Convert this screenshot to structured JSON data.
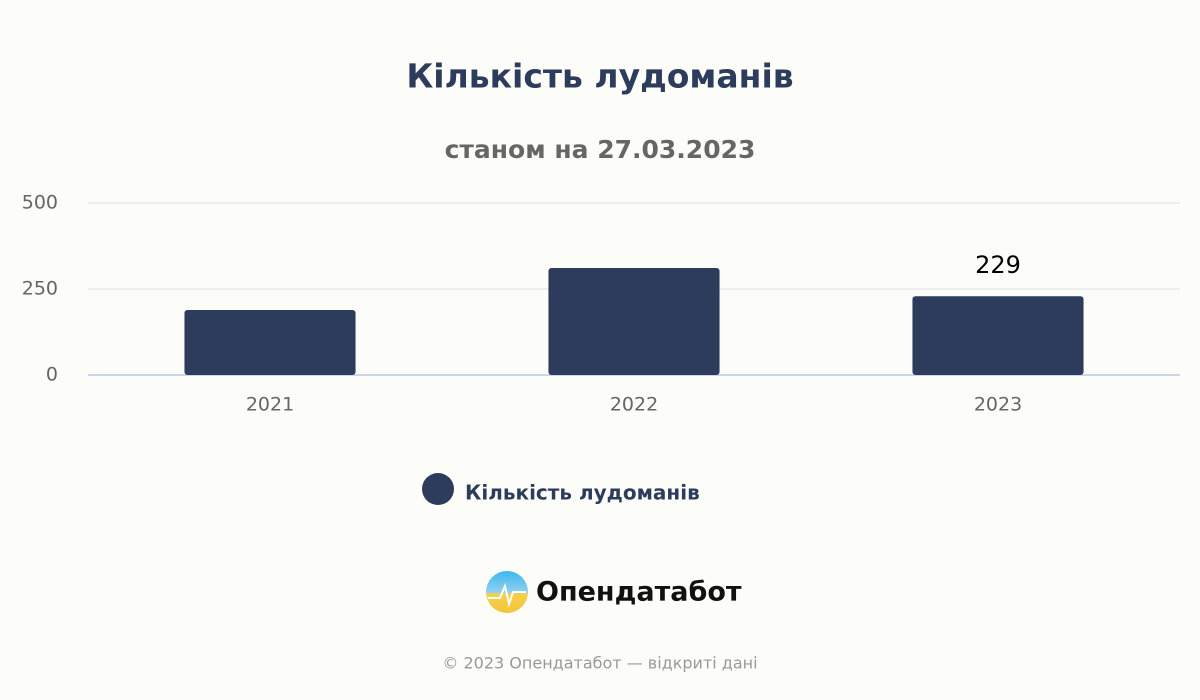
{
  "chart_data": {
    "type": "bar",
    "title": "Кількість лудоманів",
    "subtitle": "станом на 27.03.2023",
    "categories": [
      "2021",
      "2022",
      "2023"
    ],
    "series": [
      {
        "name": "Кількість лудоманів",
        "color": "#2d3b5c",
        "values": [
          189,
          311,
          229
        ]
      }
    ],
    "ylim": [
      0,
      500
    ],
    "yticks": [
      0,
      250,
      500
    ],
    "grid": true,
    "label_last": true,
    "legend": "bottom"
  },
  "brand": {
    "logo_text": "Опендатабот",
    "footer": "© 2023 Опендатабот — відкриті дані"
  }
}
